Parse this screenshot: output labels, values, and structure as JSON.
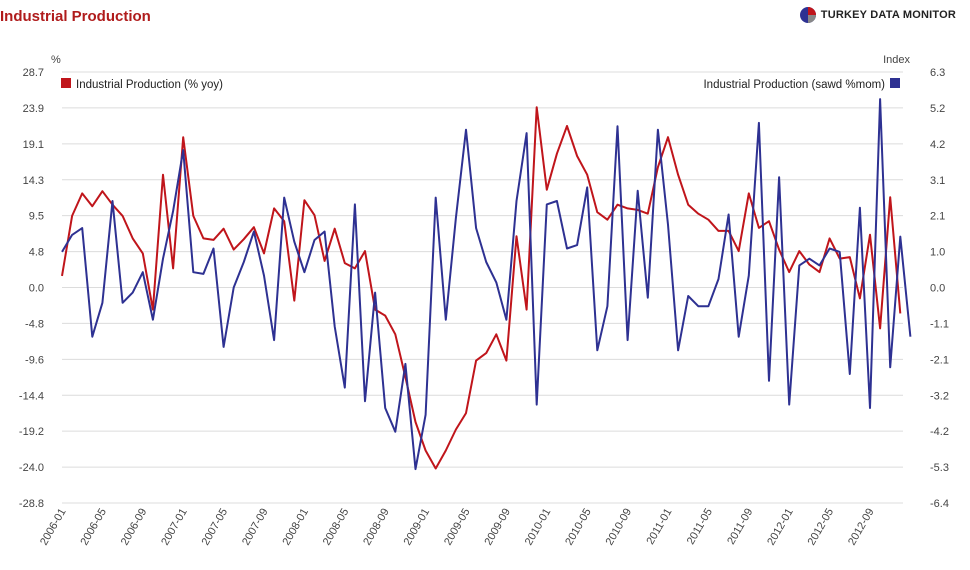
{
  "page": {
    "title": "Industrial Production",
    "brand": "TURKEY DATA MONITOR"
  },
  "chart_data": {
    "type": "line",
    "left_axis": {
      "unit_label": "%",
      "ticks": [
        "28.7",
        "23.9",
        "19.1",
        "14.3",
        "9.5",
        "4.8",
        "0.0",
        "-4.8",
        "-9.6",
        "-14.4",
        "-19.2",
        "-24.0",
        "-28.8"
      ],
      "range": [
        -28.8,
        28.7
      ]
    },
    "right_axis": {
      "unit_label": "Index",
      "ticks": [
        "6.3",
        "5.2",
        "4.2",
        "3.1",
        "2.1",
        "1.0",
        "0.0",
        "-1.1",
        "-2.1",
        "-3.2",
        "-4.2",
        "-5.3",
        "-6.4"
      ],
      "range": [
        -6.4,
        6.3
      ]
    },
    "x_tick_labels": [
      "2006-01",
      "2006-05",
      "2006-09",
      "2007-01",
      "2007-05",
      "2007-09",
      "2008-01",
      "2008-05",
      "2008-09",
      "2009-01",
      "2009-05",
      "2009-09",
      "2010-01",
      "2010-05",
      "2010-09",
      "2011-01",
      "2011-05",
      "2011-09",
      "2012-01",
      "2012-05",
      "2012-09"
    ],
    "x_start": "2006-01",
    "grid": "horizontal",
    "legend": [
      {
        "name": "Industrial Production (% yoy)",
        "axis": "left",
        "position": "top-left",
        "color": "#c0151b"
      },
      {
        "name": "Industrial Production (sawd %mom)",
        "axis": "right",
        "position": "top-right",
        "color": "#2e3192"
      }
    ],
    "series": [
      {
        "name": "Industrial Production (% yoy)",
        "axis": "left",
        "color": "#c0151b",
        "values": [
          1.5,
          9.5,
          12.5,
          10.8,
          12.8,
          11.0,
          9.5,
          6.5,
          4.5,
          -3.0,
          15.0,
          2.5,
          20.0,
          9.5,
          6.5,
          6.3,
          7.8,
          5.0,
          6.4,
          8.0,
          4.5,
          10.5,
          8.8,
          -1.8,
          11.6,
          9.6,
          3.5,
          7.8,
          3.2,
          2.5,
          4.8,
          -3.0,
          -3.8,
          -6.3,
          -12.0,
          -18.0,
          -21.8,
          -24.2,
          -21.8,
          -19.0,
          -16.8,
          -9.8,
          -8.8,
          -6.3,
          -9.8,
          6.8,
          -3.0,
          24.0,
          13.0,
          17.8,
          21.5,
          17.5,
          15.0,
          10.0,
          9.0,
          11.0,
          10.5,
          10.3,
          9.8,
          16.0,
          20.0,
          15.0,
          11.0,
          9.8,
          9.0,
          7.5,
          7.5,
          4.8,
          12.5,
          7.9,
          8.8,
          5.0,
          2.0,
          4.8,
          3.0,
          2.0,
          6.5,
          3.8,
          4.0,
          -1.5,
          7.0,
          -5.5,
          12.0,
          -3.5
        ],
        "note": "monthly from 2006-01"
      },
      {
        "name": "Industrial Production (sawd %mom)",
        "axis": "right",
        "color": "#2e3192",
        "values": [
          1.0,
          1.5,
          1.7,
          -1.5,
          -0.5,
          2.5,
          -0.5,
          -0.2,
          0.4,
          -1.0,
          0.8,
          2.2,
          4.0,
          0.4,
          0.35,
          1.1,
          -1.8,
          -0.05,
          0.7,
          1.6,
          0.3,
          -1.6,
          2.6,
          1.3,
          0.4,
          1.35,
          1.6,
          -1.2,
          -3.0,
          2.4,
          -3.4,
          -0.2,
          -3.6,
          -4.3,
          -2.3,
          -5.4,
          -3.8,
          2.6,
          -1.0,
          2.0,
          4.6,
          1.7,
          0.7,
          0.1,
          -1.0,
          2.5,
          4.5,
          -3.5,
          2.4,
          2.5,
          1.1,
          1.2,
          2.9,
          -1.9,
          -0.6,
          4.7,
          -1.6,
          2.8,
          -0.35,
          4.6,
          1.8,
          -1.9,
          -0.3,
          -0.6,
          -0.6,
          0.2,
          2.1,
          -1.5,
          0.3,
          4.8,
          -2.8,
          3.2,
          -3.5,
          0.6,
          0.8,
          0.6,
          1.1,
          1.0,
          -2.6,
          2.3,
          -3.6,
          5.5,
          -2.4,
          1.45,
          -1.5
        ],
        "note": "monthly from 2006-01"
      }
    ]
  }
}
